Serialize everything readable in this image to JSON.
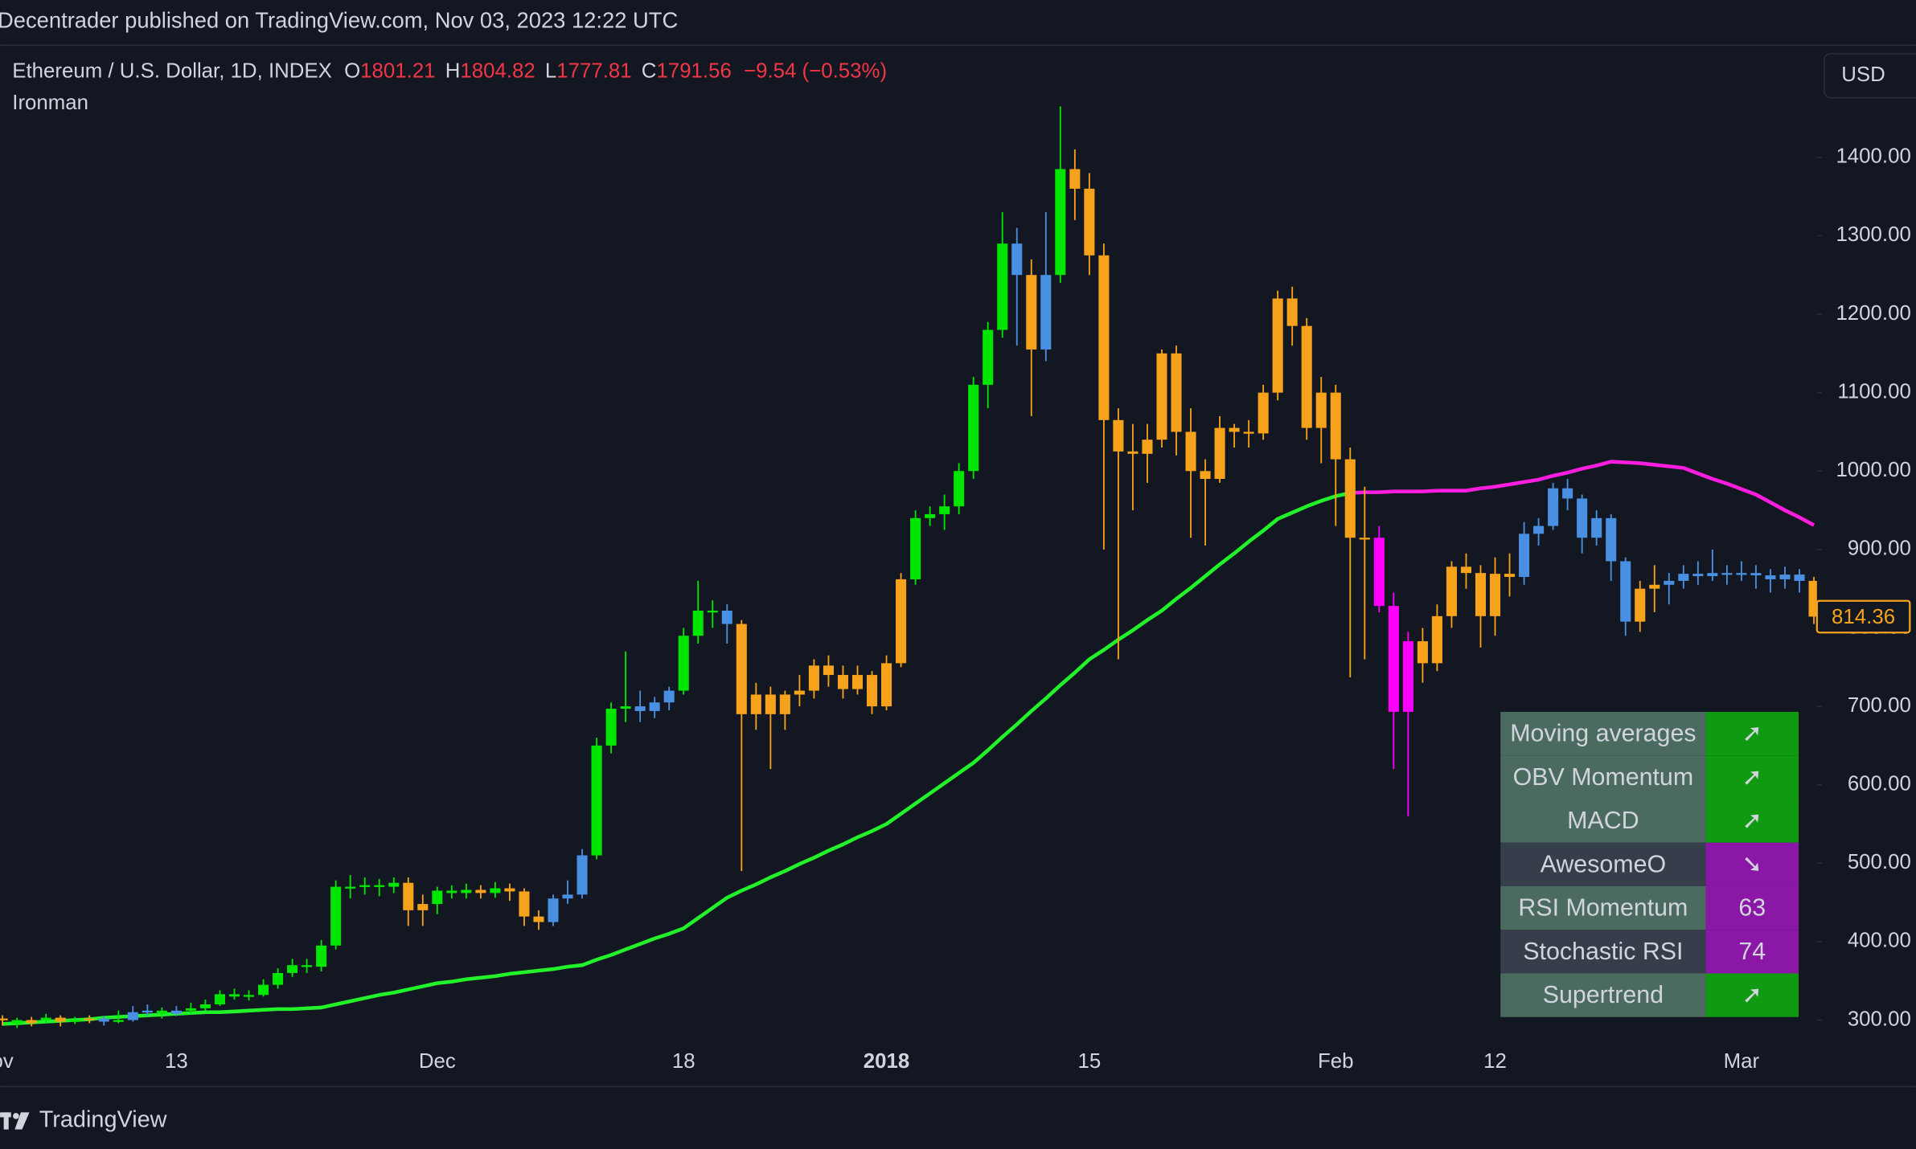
{
  "header": {
    "published": "Decentrader published on TradingView.com, Nov 03, 2023 12:22 UTC",
    "symbol": "Ethereum / U.S. Dollar, 1D, INDEX",
    "quote": [
      {
        "key": "O",
        "value": 1801.21
      },
      {
        "key": "H",
        "value": 1804.82
      },
      {
        "key": "L",
        "value": 1777.81
      },
      {
        "key": "C",
        "value": 1791.56
      }
    ],
    "change": "−9.54 (−0.53%)",
    "indicator": "Ironman",
    "currency": "USD"
  },
  "footer": {
    "brand": "TradingView"
  },
  "chart_data": {
    "type": "candlestick",
    "categories": [
      "ov",
      null,
      null,
      null,
      null,
      null,
      null,
      null,
      null,
      null,
      null,
      null,
      "13",
      null,
      null,
      null,
      null,
      null,
      null,
      null,
      null,
      null,
      null,
      null,
      null,
      null,
      null,
      null,
      null,
      null,
      "Dec",
      null,
      null,
      null,
      null,
      null,
      null,
      null,
      null,
      null,
      null,
      null,
      null,
      null,
      null,
      null,
      null,
      "18",
      null,
      null,
      null,
      null,
      null,
      null,
      null,
      null,
      null,
      null,
      null,
      null,
      null,
      "2018",
      null,
      null,
      null,
      null,
      null,
      null,
      null,
      null,
      null,
      null,
      null,
      null,
      null,
      "15",
      null,
      null,
      null,
      null,
      null,
      null,
      null,
      null,
      null,
      null,
      null,
      null,
      null,
      null,
      null,
      null,
      "Feb",
      null,
      null,
      null,
      null,
      null,
      null,
      null,
      null,
      null,
      null,
      "12",
      null,
      null,
      null,
      null,
      null,
      null,
      null,
      null,
      null,
      null,
      null,
      null,
      null,
      null,
      null,
      null,
      "Mar",
      null,
      null,
      null,
      null,
      null
    ],
    "ohlc": [
      [
        302,
        306,
        293,
        300
      ],
      [
        300,
        303,
        290,
        296
      ],
      [
        296,
        304,
        292,
        300
      ],
      [
        300,
        308,
        297,
        303
      ],
      [
        303,
        306,
        292,
        298
      ],
      [
        298,
        304,
        295,
        300
      ],
      [
        300,
        306,
        296,
        302
      ],
      [
        302,
        305,
        293,
        298
      ],
      [
        298,
        312,
        296,
        300
      ],
      [
        300,
        318,
        298,
        310
      ],
      [
        310,
        320,
        305,
        312
      ],
      [
        312,
        316,
        302,
        308
      ],
      [
        308,
        318,
        305,
        312
      ],
      [
        312,
        322,
        308,
        315
      ],
      [
        315,
        326,
        312,
        320
      ],
      [
        320,
        338,
        318,
        333
      ],
      [
        333,
        340,
        326,
        330
      ],
      [
        330,
        338,
        325,
        332
      ],
      [
        332,
        352,
        330,
        345
      ],
      [
        345,
        366,
        340,
        360
      ],
      [
        360,
        378,
        355,
        370
      ],
      [
        370,
        378,
        360,
        368
      ],
      [
        368,
        402,
        362,
        395
      ],
      [
        395,
        478,
        390,
        470
      ],
      [
        470,
        485,
        455,
        470
      ],
      [
        470,
        482,
        460,
        472
      ],
      [
        472,
        480,
        458,
        470
      ],
      [
        470,
        482,
        462,
        475
      ],
      [
        475,
        482,
        420,
        440
      ],
      [
        440,
        460,
        420,
        448
      ],
      [
        448,
        470,
        435,
        465
      ],
      [
        465,
        472,
        455,
        462
      ],
      [
        462,
        474,
        455,
        466
      ],
      [
        466,
        472,
        455,
        462
      ],
      [
        462,
        476,
        456,
        468
      ],
      [
        468,
        474,
        452,
        464
      ],
      [
        464,
        468,
        420,
        432
      ],
      [
        432,
        440,
        415,
        425
      ],
      [
        425,
        460,
        420,
        455
      ],
      [
        455,
        478,
        448,
        460
      ],
      [
        460,
        518,
        455,
        510
      ],
      [
        510,
        660,
        505,
        650
      ],
      [
        650,
        705,
        640,
        697
      ],
      [
        697,
        770,
        680,
        700
      ],
      [
        700,
        720,
        680,
        694
      ],
      [
        694,
        712,
        685,
        705
      ],
      [
        705,
        725,
        695,
        720
      ],
      [
        720,
        800,
        715,
        790
      ],
      [
        790,
        860,
        780,
        822
      ],
      [
        822,
        835,
        800,
        822
      ],
      [
        822,
        830,
        780,
        805
      ],
      [
        805,
        810,
        490,
        690
      ],
      [
        690,
        730,
        670,
        715
      ],
      [
        715,
        725,
        620,
        690
      ],
      [
        690,
        720,
        670,
        715
      ],
      [
        715,
        740,
        700,
        720
      ],
      [
        720,
        760,
        710,
        752
      ],
      [
        752,
        765,
        725,
        740
      ],
      [
        740,
        752,
        710,
        722
      ],
      [
        722,
        752,
        715,
        740
      ],
      [
        740,
        745,
        690,
        700
      ],
      [
        700,
        765,
        695,
        755
      ],
      [
        755,
        870,
        750,
        862
      ],
      [
        862,
        950,
        855,
        940
      ],
      [
        940,
        955,
        930,
        945
      ],
      [
        945,
        970,
        925,
        955
      ],
      [
        955,
        1010,
        945,
        1000
      ],
      [
        1000,
        1120,
        990,
        1110
      ],
      [
        1110,
        1190,
        1080,
        1180
      ],
      [
        1180,
        1330,
        1170,
        1290
      ],
      [
        1290,
        1310,
        1160,
        1250
      ],
      [
        1250,
        1270,
        1070,
        1155
      ],
      [
        1155,
        1330,
        1140,
        1250
      ],
      [
        1250,
        1465,
        1240,
        1385
      ],
      [
        1385,
        1410,
        1320,
        1360
      ],
      [
        1360,
        1380,
        1250,
        1275
      ],
      [
        1275,
        1290,
        900,
        1065
      ],
      [
        1065,
        1080,
        760,
        1025
      ],
      [
        1025,
        1060,
        950,
        1022
      ],
      [
        1022,
        1060,
        985,
        1040
      ],
      [
        1040,
        1155,
        1030,
        1150
      ],
      [
        1150,
        1160,
        1020,
        1050
      ],
      [
        1050,
        1080,
        915,
        1000
      ],
      [
        1000,
        1015,
        905,
        990
      ],
      [
        990,
        1070,
        985,
        1055
      ],
      [
        1055,
        1060,
        1030,
        1050
      ],
      [
        1050,
        1065,
        1030,
        1048
      ],
      [
        1048,
        1110,
        1040,
        1100
      ],
      [
        1100,
        1230,
        1090,
        1220
      ],
      [
        1220,
        1235,
        1160,
        1185
      ],
      [
        1185,
        1195,
        1040,
        1055
      ],
      [
        1055,
        1120,
        1010,
        1100
      ],
      [
        1100,
        1110,
        930,
        1015
      ],
      [
        1015,
        1030,
        737,
        915
      ],
      [
        915,
        980,
        760,
        915
      ],
      [
        915,
        930,
        820,
        828
      ],
      [
        828,
        845,
        620,
        693
      ],
      [
        693,
        795,
        560,
        783
      ],
      [
        783,
        800,
        730,
        755
      ],
      [
        755,
        830,
        745,
        815
      ],
      [
        815,
        885,
        800,
        878
      ],
      [
        878,
        895,
        850,
        870
      ],
      [
        870,
        880,
        775,
        815
      ],
      [
        815,
        890,
        790,
        869
      ],
      [
        869,
        895,
        840,
        865
      ],
      [
        865,
        935,
        855,
        920
      ],
      [
        920,
        940,
        905,
        930
      ],
      [
        930,
        985,
        925,
        978
      ],
      [
        978,
        990,
        950,
        965
      ],
      [
        965,
        970,
        895,
        915
      ],
      [
        915,
        950,
        905,
        940
      ],
      [
        940,
        945,
        860,
        885
      ],
      [
        885,
        890,
        790,
        808
      ],
      [
        808,
        860,
        795,
        850
      ],
      [
        850,
        880,
        820,
        855
      ],
      [
        855,
        870,
        830,
        860
      ],
      [
        860,
        880,
        850,
        869
      ],
      [
        869,
        885,
        855,
        866
      ],
      [
        866,
        900,
        860,
        870
      ],
      [
        870,
        880,
        855,
        868
      ],
      [
        868,
        885,
        860,
        870
      ],
      [
        870,
        880,
        850,
        867
      ],
      [
        867,
        875,
        845,
        862
      ],
      [
        862,
        878,
        850,
        868
      ],
      [
        868,
        875,
        845,
        860
      ],
      [
        860,
        865,
        805,
        814.36
      ]
    ],
    "candle_colors": [
      "#f7a21b",
      "#00e600",
      "#f7a21b",
      "#00e600",
      "#f7a21b",
      "#00e600",
      "#f7a21b",
      "#4a90e2",
      "#00e600",
      "#4a90e2",
      "#4a90e2",
      "#00e600",
      "#4a90e2",
      "#00e600",
      "#00e600",
      "#00e600",
      "#00e600",
      "#00e600",
      "#00e600",
      "#00e600",
      "#00e600",
      "#00e600",
      "#00e600",
      "#00e600",
      "#00e600",
      "#00e600",
      "#00e600",
      "#00e600",
      "#f7a21b",
      "#f7a21b",
      "#00e600",
      "#00e600",
      "#00e600",
      "#f7a21b",
      "#00e600",
      "#f7a21b",
      "#f7a21b",
      "#f7a21b",
      "#4a90e2",
      "#4a90e2",
      "#4a90e2",
      "#00e600",
      "#00e600",
      "#00e600",
      "#4a90e2",
      "#4a90e2",
      "#4a90e2",
      "#00e600",
      "#00e600",
      "#00e600",
      "#4a90e2",
      "#f7a21b",
      "#f7a21b",
      "#f7a21b",
      "#f7a21b",
      "#f7a21b",
      "#f7a21b",
      "#f7a21b",
      "#f7a21b",
      "#f7a21b",
      "#f7a21b",
      "#f7a21b",
      "#f7a21b",
      "#00e600",
      "#00e600",
      "#00e600",
      "#00e600",
      "#00e600",
      "#00e600",
      "#00e600",
      "#4a90e2",
      "#f7a21b",
      "#4a90e2",
      "#00e600",
      "#f7a21b",
      "#f7a21b",
      "#f7a21b",
      "#f7a21b",
      "#f7a21b",
      "#f7a21b",
      "#f7a21b",
      "#f7a21b",
      "#f7a21b",
      "#f7a21b",
      "#f7a21b",
      "#f7a21b",
      "#f7a21b",
      "#f7a21b",
      "#f7a21b",
      "#f7a21b",
      "#f7a21b",
      "#f7a21b",
      "#f7a21b",
      "#f7a21b",
      "#f7a21b",
      "#ff00ff",
      "#ff00ff",
      "#ff00ff",
      "#f7a21b",
      "#f7a21b",
      "#f7a21b",
      "#f7a21b",
      "#f7a21b",
      "#f7a21b",
      "#f7a21b",
      "#4a90e2",
      "#4a90e2",
      "#4a90e2",
      "#4a90e2",
      "#4a90e2",
      "#4a90e2",
      "#4a90e2",
      "#4a90e2",
      "#f7a21b",
      "#f7a21b",
      "#4a90e2",
      "#4a90e2",
      "#4a90e2",
      "#4a90e2",
      "#4a90e2",
      "#4a90e2",
      "#4a90e2",
      "#4a90e2",
      "#4a90e2",
      "#4a90e2",
      "#f7a21b"
    ],
    "series": [
      {
        "color": "#22f22a",
        "values": [
          295,
          296,
          297,
          298,
          299,
          300,
          301,
          303,
          304,
          305,
          306,
          307,
          308,
          309,
          310,
          310,
          311,
          312,
          313,
          314,
          314,
          315,
          316,
          320,
          324,
          328,
          332,
          335,
          339,
          343,
          347,
          349,
          352,
          354,
          356,
          359,
          361,
          363,
          365,
          368,
          370,
          377,
          383,
          390,
          397,
          404,
          410,
          417,
          430,
          443,
          456,
          465,
          473,
          482,
          490,
          499,
          507,
          516,
          524,
          533,
          541,
          550,
          563,
          576,
          589,
          602,
          615,
          628,
          644,
          661,
          677,
          694,
          710,
          727,
          743,
          760,
          772,
          785,
          797,
          810,
          822,
          837,
          851,
          866,
          881,
          895,
          910,
          924,
          939,
          947,
          955,
          962,
          968,
          972,
          null,
          null,
          null,
          null,
          null,
          null,
          null,
          null,
          null,
          null,
          null,
          null,
          null,
          null,
          null,
          null,
          null,
          null,
          null,
          null,
          null,
          null,
          null,
          null,
          null,
          null,
          null,
          null,
          null,
          null,
          null,
          null
        ]
      },
      {
        "color": "#ff1ee0",
        "values": [
          null,
          null,
          null,
          null,
          null,
          null,
          null,
          null,
          null,
          null,
          null,
          null,
          null,
          null,
          null,
          null,
          null,
          null,
          null,
          null,
          null,
          null,
          null,
          null,
          null,
          null,
          null,
          null,
          null,
          null,
          null,
          null,
          null,
          null,
          null,
          null,
          null,
          null,
          null,
          null,
          null,
          null,
          null,
          null,
          null,
          null,
          null,
          null,
          null,
          null,
          null,
          null,
          null,
          null,
          null,
          null,
          null,
          null,
          null,
          null,
          null,
          null,
          null,
          null,
          null,
          null,
          null,
          null,
          null,
          null,
          null,
          null,
          null,
          null,
          null,
          null,
          null,
          null,
          null,
          null,
          null,
          null,
          null,
          null,
          null,
          null,
          null,
          null,
          null,
          null,
          null,
          null,
          null,
          972,
          973,
          973,
          974,
          974,
          974,
          975,
          975,
          975,
          978,
          980,
          983,
          986,
          989,
          994,
          998,
          1003,
          1007,
          1012,
          1011,
          1010,
          1008,
          1006,
          1004,
          997,
          990,
          984,
          977,
          970,
          960,
          950,
          941,
          931
        ]
      }
    ],
    "ylim": [
      215,
      1543
    ],
    "yticks": [
      {
        "value": 300,
        "label": "300.00"
      },
      {
        "value": 400,
        "label": "400.00"
      },
      {
        "value": 500,
        "label": "500.00"
      },
      {
        "value": 600,
        "label": "600.00"
      },
      {
        "value": 700,
        "label": "700.00"
      },
      {
        "value": 800,
        "label": "800.00"
      },
      {
        "value": 900,
        "label": "900.00"
      },
      {
        "value": 1000,
        "label": "1000.00"
      },
      {
        "value": 1100,
        "label": "1100.00"
      },
      {
        "value": 1200,
        "label": "1200.00"
      },
      {
        "value": 1300,
        "label": "1300.00"
      },
      {
        "value": 1400,
        "label": "1400.00"
      }
    ],
    "last_price_color": "#f7a21b",
    "grid": false
  },
  "table": {
    "rows": [
      {
        "label": "Moving averages",
        "value": "➚",
        "label_bg": "#4b6b60",
        "value_bg": "#0f9a12"
      },
      {
        "label": "OBV Momentum",
        "value": "➚",
        "label_bg": "#4b6b60",
        "value_bg": "#0f9a12"
      },
      {
        "label": "MACD",
        "value": "➚",
        "label_bg": "#4b6b60",
        "value_bg": "#0f9a12"
      },
      {
        "label": "AwesomeO",
        "value": "➘",
        "label_bg": "#363d4b",
        "value_bg": "#8b17a6"
      },
      {
        "label": "RSI Momentum",
        "value": 63,
        "label_bg": "#4b6b60",
        "value_bg": "#8b17a6"
      },
      {
        "label": "Stochastic RSI",
        "value": 74,
        "label_bg": "#363d4b",
        "value_bg": "#8b17a6"
      },
      {
        "label": "Supertrend",
        "value": "➚",
        "label_bg": "#4b6b60",
        "value_bg": "#0f9a12"
      }
    ]
  }
}
